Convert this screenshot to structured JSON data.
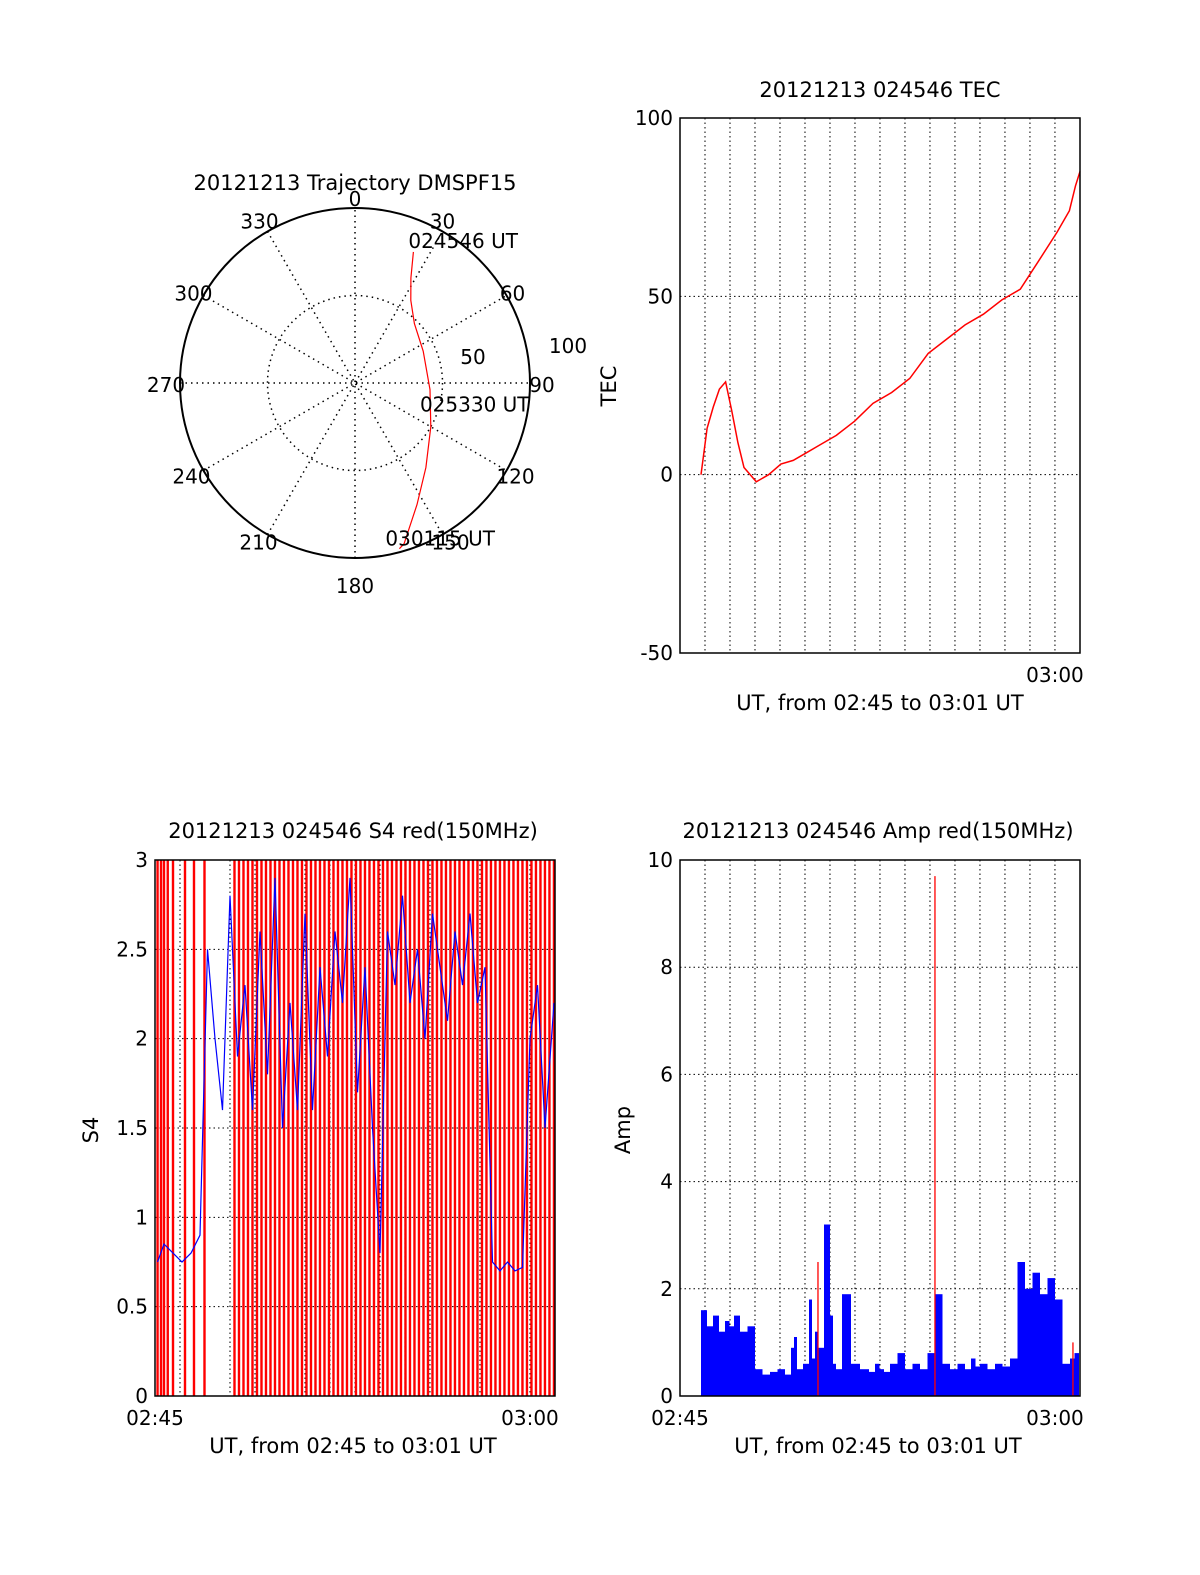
{
  "colors": {
    "red_series": "#ff0000",
    "blue_series": "#0000ff",
    "axes": "#000000",
    "grid": "#000000"
  },
  "chart_data": [
    {
      "id": "trajectory",
      "type": "polar",
      "title": "20121213 Trajectory DMSPF15",
      "grid": true,
      "angle_labels": [
        "0",
        "30",
        "60",
        "90",
        "120",
        "150",
        "180",
        "210",
        "240",
        "270",
        "300",
        "330"
      ],
      "radius_labels": [
        "50",
        "100"
      ],
      "radius_max": 100,
      "series": [
        {
          "color": "red",
          "points": [
            {
              "az": 24,
              "r": 82
            },
            {
              "az": 28,
              "r": 68
            },
            {
              "az": 34,
              "r": 57
            },
            {
              "az": 45,
              "r": 48
            },
            {
              "az": 65,
              "r": 43
            },
            {
              "az": 95,
              "r": 43
            },
            {
              "az": 120,
              "r": 50
            },
            {
              "az": 140,
              "r": 63
            },
            {
              "az": 153,
              "r": 78
            },
            {
              "az": 163,
              "r": 96
            },
            {
              "az": 165,
              "r": 98
            }
          ]
        }
      ],
      "annotations": [
        {
          "text": "024546 UT",
          "az": 24,
          "r": 82
        },
        {
          "text": "025330 UT",
          "az": 95,
          "r": 43
        },
        {
          "text": "030115 UT",
          "az": 165,
          "r": 98
        }
      ]
    },
    {
      "id": "tec",
      "type": "line",
      "title": "20121213 024546 TEC",
      "xlabel": "UT, from 02:45 to 03:01 UT",
      "ylabel": "TEC",
      "xlim": [
        2.75,
        3.0167
      ],
      "ylim": [
        -50,
        100
      ],
      "yticks": [
        -50,
        0,
        50,
        100
      ],
      "xtick_labels": [
        {
          "x": 3.0,
          "label": "03:00"
        }
      ],
      "grid": true,
      "series": [
        {
          "color": "red",
          "x": [
            2.764,
            2.7681,
            2.7722,
            2.7763,
            2.7804,
            2.7845,
            2.7886,
            2.7927,
            2.8009,
            2.8091,
            2.8173,
            2.8255,
            2.8337,
            2.8419,
            2.8542,
            2.8664,
            2.8787,
            2.891,
            2.9032,
            2.9155,
            2.9278,
            2.9401,
            2.9523,
            2.9646,
            2.9769,
            2.9892,
            3.0014,
            3.0096,
            3.0137,
            3.0167
          ],
          "y": [
            0,
            13,
            19,
            24,
            26,
            18,
            9,
            2,
            -2,
            0,
            3,
            4,
            6,
            8,
            11,
            15,
            20,
            23,
            27,
            34,
            38,
            42,
            45,
            49,
            52,
            60,
            68,
            74,
            81,
            85
          ]
        }
      ]
    },
    {
      "id": "s4",
      "type": "line",
      "title": "20121213 024546 S4 red(150MHz)",
      "xlabel": "UT, from 02:45 to 03:01 UT",
      "ylabel": "S4",
      "xlim": [
        2.75,
        3.0167
      ],
      "ylim": [
        0,
        3
      ],
      "yticks": [
        0,
        0.5,
        1,
        1.5,
        2,
        2.5,
        3
      ],
      "xtick_labels": [
        {
          "x": 2.75,
          "label": "02:45"
        },
        {
          "x": 3.0,
          "label": "03:00"
        }
      ],
      "grid": true,
      "series": [
        {
          "color": "red",
          "description_values": "saturated vertical spikes from 0 to 3",
          "spike_x": [
            2.7517,
            2.754,
            2.756,
            2.7585,
            2.762,
            2.77,
            2.776,
            2.783,
            2.803,
            2.806,
            2.809,
            2.812,
            2.815,
            2.818,
            2.821,
            2.824,
            2.827,
            2.83,
            2.833,
            2.836,
            2.839,
            2.842,
            2.845,
            2.848,
            2.851,
            2.854,
            2.857,
            2.86,
            2.863,
            2.866,
            2.869,
            2.872,
            2.875,
            2.878,
            2.881,
            2.884,
            2.887,
            2.89,
            2.893,
            2.896,
            2.899,
            2.902,
            2.905,
            2.908,
            2.911,
            2.914,
            2.917,
            2.92,
            2.923,
            2.926,
            2.929,
            2.932,
            2.935,
            2.938,
            2.941,
            2.944,
            2.947,
            2.95,
            2.953,
            2.956,
            2.959,
            2.962,
            2.965,
            2.968,
            2.971,
            2.974,
            2.977,
            2.98,
            2.983,
            2.986,
            2.989,
            2.992,
            2.995,
            2.998,
            3.001,
            3.004,
            3.007,
            3.01,
            3.013,
            3.016
          ]
        },
        {
          "color": "blue",
          "x": [
            2.7517,
            2.756,
            2.762,
            2.768,
            2.774,
            2.78,
            2.785,
            2.79,
            2.795,
            2.8,
            2.805,
            2.81,
            2.815,
            2.82,
            2.825,
            2.83,
            2.835,
            2.84,
            2.845,
            2.85,
            2.855,
            2.86,
            2.865,
            2.87,
            2.875,
            2.88,
            2.885,
            2.89,
            2.895,
            2.9,
            2.905,
            2.91,
            2.915,
            2.92,
            2.925,
            2.93,
            2.935,
            2.94,
            2.945,
            2.95,
            2.955,
            2.96,
            2.965,
            2.97,
            2.975,
            2.98,
            2.985,
            2.99,
            2.995,
            3.0,
            3.005,
            3.01,
            3.016
          ],
          "y": [
            0.75,
            0.85,
            0.8,
            0.75,
            0.8,
            0.9,
            2.5,
            2.0,
            1.6,
            2.8,
            1.9,
            2.3,
            1.6,
            2.6,
            1.8,
            2.9,
            1.5,
            2.2,
            1.6,
            2.7,
            1.6,
            2.4,
            1.9,
            2.6,
            2.2,
            2.9,
            1.7,
            2.4,
            1.5,
            0.8,
            2.6,
            2.3,
            2.8,
            2.2,
            2.5,
            2.0,
            2.7,
            2.4,
            2.1,
            2.6,
            2.3,
            2.7,
            2.2,
            2.4,
            0.75,
            0.7,
            0.75,
            0.7,
            0.72,
            2.0,
            2.3,
            1.5,
            2.2
          ]
        }
      ]
    },
    {
      "id": "amp",
      "type": "line",
      "title": "20121213 024546 Amp red(150MHz)",
      "xlabel": "UT, from 02:45 to 03:01 UT",
      "ylabel": "Amp",
      "xlim": [
        2.75,
        3.0167
      ],
      "ylim": [
        0,
        10
      ],
      "yticks": [
        0,
        2,
        4,
        6,
        8,
        10
      ],
      "xtick_labels": [
        {
          "x": 2.75,
          "label": "02:45"
        },
        {
          "x": 3.0,
          "label": "03:00"
        }
      ],
      "grid": true,
      "series": [
        {
          "color": "blue",
          "x": [
            2.764,
            2.768,
            2.772,
            2.776,
            2.78,
            2.783,
            2.786,
            2.79,
            2.795,
            2.8,
            2.805,
            2.81,
            2.815,
            2.82,
            2.824,
            2.826,
            2.828,
            2.832,
            2.836,
            2.838,
            2.84,
            2.842,
            2.846,
            2.85,
            2.852,
            2.854,
            2.858,
            2.864,
            2.87,
            2.876,
            2.88,
            2.883,
            2.886,
            2.89,
            2.895,
            2.9,
            2.905,
            2.91,
            2.915,
            2.92,
            2.925,
            2.93,
            2.935,
            2.94,
            2.944,
            2.947,
            2.95,
            2.955,
            2.96,
            2.965,
            2.97,
            2.975,
            2.98,
            2.985,
            2.99,
            2.995,
            3.0,
            3.005,
            3.01,
            3.013,
            3.016
          ],
          "y": [
            1.6,
            1.3,
            1.5,
            1.2,
            1.4,
            1.3,
            1.5,
            1.2,
            1.3,
            0.5,
            0.4,
            0.45,
            0.5,
            0.4,
            0.9,
            1.1,
            0.5,
            0.6,
            1.8,
            0.7,
            1.2,
            0.9,
            3.2,
            1.5,
            0.6,
            0.5,
            1.9,
            0.6,
            0.5,
            0.45,
            0.6,
            0.5,
            0.45,
            0.6,
            0.8,
            0.5,
            0.6,
            0.5,
            0.8,
            1.9,
            0.6,
            0.5,
            0.6,
            0.5,
            0.7,
            0.55,
            0.6,
            0.5,
            0.6,
            0.55,
            0.7,
            2.5,
            2.0,
            2.3,
            1.9,
            2.2,
            1.8,
            0.6,
            0.7,
            0.8,
            0.6
          ]
        },
        {
          "color": "red",
          "spikes": [
            {
              "x": 2.842,
              "y": 2.5
            },
            {
              "x": 2.92,
              "y": 9.7
            },
            {
              "x": 3.012,
              "y": 1.0
            }
          ]
        }
      ]
    }
  ]
}
